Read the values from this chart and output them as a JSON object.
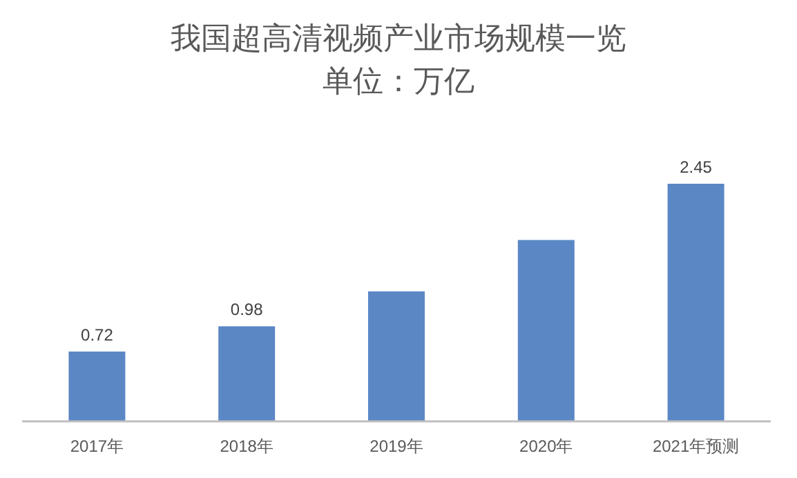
{
  "chart_data": {
    "type": "bar",
    "title": "我国超高清视频产业市场规模一览",
    "subtitle": "单位：万亿",
    "categories": [
      "2017年",
      "2018年",
      "2019年",
      "2020年",
      "2021年预测"
    ],
    "values": [
      0.72,
      0.98,
      1.34,
      1.87,
      2.45
    ],
    "value_labels": [
      "0.72",
      "0.98",
      null,
      null,
      "2.45"
    ],
    "color": "#5b87c5"
  }
}
